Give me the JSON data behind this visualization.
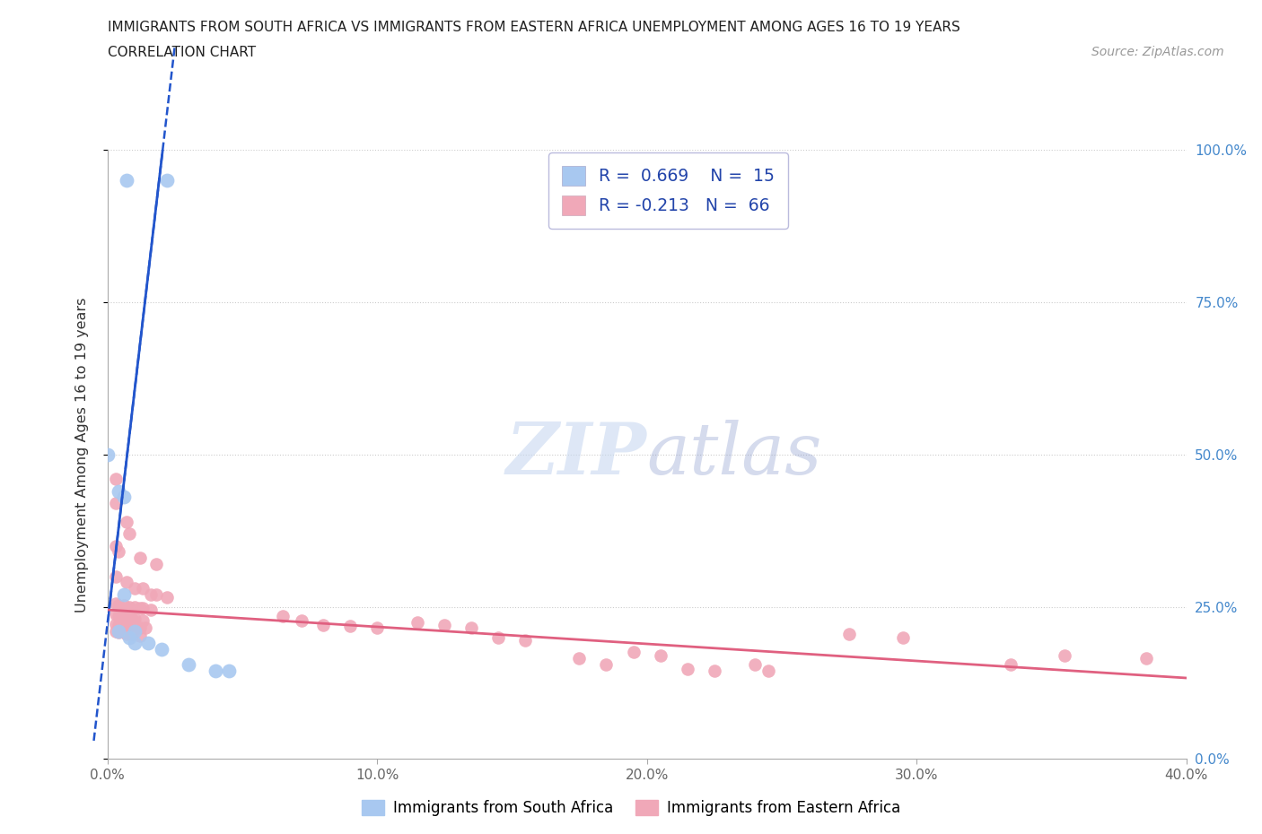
{
  "title_line1": "IMMIGRANTS FROM SOUTH AFRICA VS IMMIGRANTS FROM EASTERN AFRICA UNEMPLOYMENT AMONG AGES 16 TO 19 YEARS",
  "title_line2": "CORRELATION CHART",
  "source_text": "Source: ZipAtlas.com",
  "ylabel": "Unemployment Among Ages 16 to 19 years",
  "xlim": [
    0.0,
    0.4
  ],
  "ylim": [
    0.0,
    1.0
  ],
  "xticks": [
    0.0,
    0.1,
    0.2,
    0.3,
    0.4
  ],
  "yticks": [
    0.0,
    0.25,
    0.5,
    0.75,
    1.0
  ],
  "xticklabels": [
    "0.0%",
    "10.0%",
    "20.0%",
    "30.0%",
    "40.0%"
  ],
  "yticklabels_right": [
    "0.0%",
    "25.0%",
    "50.0%",
    "75.0%",
    "100.0%"
  ],
  "blue_R": 0.669,
  "blue_N": 15,
  "pink_R": -0.213,
  "pink_N": 66,
  "blue_color": "#a8c8f0",
  "pink_color": "#f0a8b8",
  "blue_line_color": "#2255cc",
  "pink_line_color": "#e06080",
  "blue_line_slope": 38.0,
  "blue_line_intercept": 0.22,
  "pink_line_slope": -0.28,
  "pink_line_intercept": 0.245,
  "blue_dots": [
    [
      0.007,
      0.95
    ],
    [
      0.022,
      0.95
    ],
    [
      0.0,
      0.5
    ],
    [
      0.004,
      0.44
    ],
    [
      0.006,
      0.43
    ],
    [
      0.006,
      0.27
    ],
    [
      0.004,
      0.21
    ],
    [
      0.01,
      0.21
    ],
    [
      0.008,
      0.2
    ],
    [
      0.01,
      0.19
    ],
    [
      0.015,
      0.19
    ],
    [
      0.02,
      0.18
    ],
    [
      0.03,
      0.155
    ],
    [
      0.04,
      0.145
    ],
    [
      0.045,
      0.145
    ]
  ],
  "pink_dots": [
    [
      0.003,
      0.46
    ],
    [
      0.003,
      0.42
    ],
    [
      0.007,
      0.39
    ],
    [
      0.008,
      0.37
    ],
    [
      0.003,
      0.35
    ],
    [
      0.004,
      0.34
    ],
    [
      0.012,
      0.33
    ],
    [
      0.018,
      0.32
    ],
    [
      0.003,
      0.3
    ],
    [
      0.007,
      0.29
    ],
    [
      0.01,
      0.28
    ],
    [
      0.013,
      0.28
    ],
    [
      0.016,
      0.27
    ],
    [
      0.018,
      0.27
    ],
    [
      0.022,
      0.265
    ],
    [
      0.003,
      0.255
    ],
    [
      0.004,
      0.252
    ],
    [
      0.006,
      0.252
    ],
    [
      0.008,
      0.25
    ],
    [
      0.01,
      0.25
    ],
    [
      0.012,
      0.248
    ],
    [
      0.013,
      0.248
    ],
    [
      0.016,
      0.245
    ],
    [
      0.003,
      0.238
    ],
    [
      0.004,
      0.235
    ],
    [
      0.006,
      0.233
    ],
    [
      0.007,
      0.232
    ],
    [
      0.009,
      0.23
    ],
    [
      0.01,
      0.23
    ],
    [
      0.013,
      0.228
    ],
    [
      0.003,
      0.222
    ],
    [
      0.004,
      0.22
    ],
    [
      0.006,
      0.22
    ],
    [
      0.007,
      0.218
    ],
    [
      0.009,
      0.218
    ],
    [
      0.012,
      0.215
    ],
    [
      0.014,
      0.215
    ],
    [
      0.003,
      0.21
    ],
    [
      0.004,
      0.208
    ],
    [
      0.006,
      0.208
    ],
    [
      0.007,
      0.205
    ],
    [
      0.009,
      0.205
    ],
    [
      0.012,
      0.202
    ],
    [
      0.065,
      0.235
    ],
    [
      0.072,
      0.228
    ],
    [
      0.08,
      0.22
    ],
    [
      0.09,
      0.218
    ],
    [
      0.1,
      0.215
    ],
    [
      0.115,
      0.225
    ],
    [
      0.125,
      0.22
    ],
    [
      0.135,
      0.215
    ],
    [
      0.145,
      0.2
    ],
    [
      0.155,
      0.195
    ],
    [
      0.175,
      0.165
    ],
    [
      0.185,
      0.155
    ],
    [
      0.195,
      0.175
    ],
    [
      0.205,
      0.17
    ],
    [
      0.215,
      0.148
    ],
    [
      0.225,
      0.145
    ],
    [
      0.24,
      0.155
    ],
    [
      0.245,
      0.145
    ],
    [
      0.275,
      0.205
    ],
    [
      0.295,
      0.2
    ],
    [
      0.335,
      0.155
    ],
    [
      0.355,
      0.17
    ],
    [
      0.385,
      0.165
    ]
  ],
  "watermark_color": "#c8d8f0",
  "watermark_alpha": 0.6,
  "grid_color": "#cccccc",
  "background_color": "#ffffff",
  "legend_text_color": "#2244aa",
  "tick_color_right": "#4488cc",
  "tick_color_x": "#666666"
}
